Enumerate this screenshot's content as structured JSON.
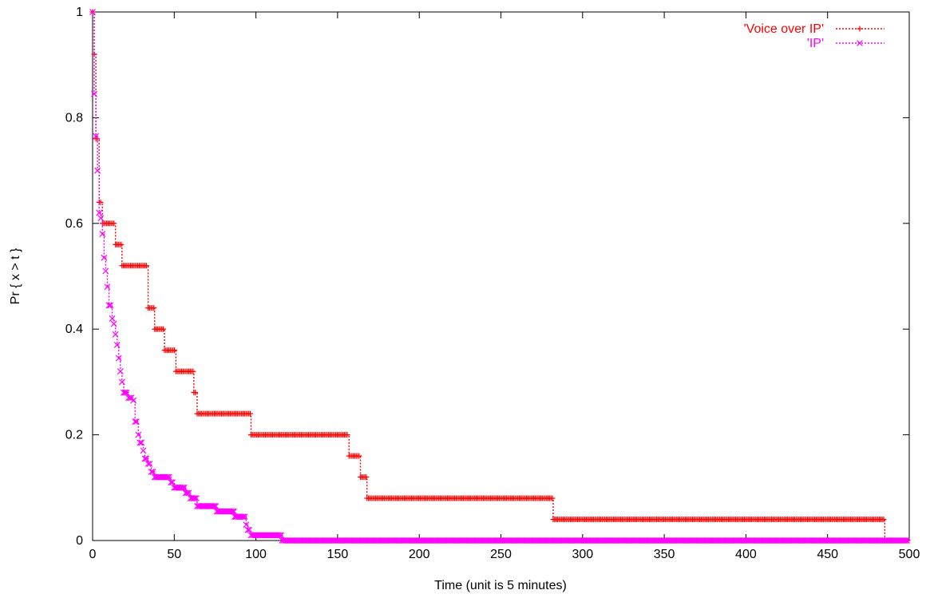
{
  "chart_data": {
    "type": "line",
    "xlabel": "Time (unit is 5 minutes)",
    "ylabel": "Pr { x > t }",
    "xlim": [
      0,
      500
    ],
    "ylim": [
      0,
      1
    ],
    "xticks": [
      0,
      50,
      100,
      150,
      200,
      250,
      300,
      350,
      400,
      450,
      500
    ],
    "yticks": [
      0,
      0.2,
      0.4,
      0.6,
      0.8,
      1
    ],
    "xtick_labels": [
      "0",
      "50",
      "100",
      "150",
      "200",
      "250",
      "300",
      "350",
      "400",
      "450",
      "500"
    ],
    "ytick_labels": [
      "0",
      "0.2",
      "0.4",
      "0.6",
      "0.8",
      "1"
    ],
    "grid": false,
    "legend": "top-right",
    "series": [
      {
        "name": "'Voice over IP'",
        "color": "#ff0000",
        "marker": "plus",
        "line_style": "dotted",
        "steps": [
          [
            0,
            1
          ],
          [
            1,
            0.92
          ],
          [
            2,
            0.76
          ],
          [
            4,
            0.64
          ],
          [
            6,
            0.6
          ],
          [
            14,
            0.56
          ],
          [
            18,
            0.52
          ],
          [
            34,
            0.44
          ],
          [
            38,
            0.4
          ],
          [
            44,
            0.36
          ],
          [
            51,
            0.32
          ],
          [
            62,
            0.28
          ],
          [
            64,
            0.24
          ],
          [
            97,
            0.2
          ],
          [
            157,
            0.16
          ],
          [
            164,
            0.12
          ],
          [
            168,
            0.08
          ],
          [
            282,
            0.04
          ],
          [
            485,
            0
          ]
        ],
        "x_end": 500
      },
      {
        "name": "'IP'",
        "color": "#ff00ff",
        "marker": "cross",
        "line_style": "dotted",
        "steps": [
          [
            0,
            1
          ],
          [
            1,
            0.845
          ],
          [
            2,
            0.765
          ],
          [
            3,
            0.7
          ],
          [
            4,
            0.62
          ],
          [
            5,
            0.61
          ],
          [
            6,
            0.58
          ],
          [
            7,
            0.535
          ],
          [
            8,
            0.51
          ],
          [
            9,
            0.48
          ],
          [
            10,
            0.445
          ],
          [
            12,
            0.42
          ],
          [
            13,
            0.41
          ],
          [
            14,
            0.39
          ],
          [
            15,
            0.37
          ],
          [
            16,
            0.345
          ],
          [
            17,
            0.32
          ],
          [
            18,
            0.3
          ],
          [
            19,
            0.28
          ],
          [
            22,
            0.27
          ],
          [
            25,
            0.265
          ],
          [
            26,
            0.225
          ],
          [
            28,
            0.2
          ],
          [
            29,
            0.185
          ],
          [
            31,
            0.17
          ],
          [
            32,
            0.155
          ],
          [
            34,
            0.145
          ],
          [
            36,
            0.13
          ],
          [
            38,
            0.12
          ],
          [
            48,
            0.11
          ],
          [
            50,
            0.1
          ],
          [
            57,
            0.09
          ],
          [
            60,
            0.08
          ],
          [
            64,
            0.065
          ],
          [
            76,
            0.055
          ],
          [
            87,
            0.045
          ],
          [
            94,
            0.03
          ],
          [
            95,
            0.02
          ],
          [
            97,
            0.01
          ],
          [
            116,
            0
          ]
        ],
        "x_end": 500
      }
    ]
  }
}
